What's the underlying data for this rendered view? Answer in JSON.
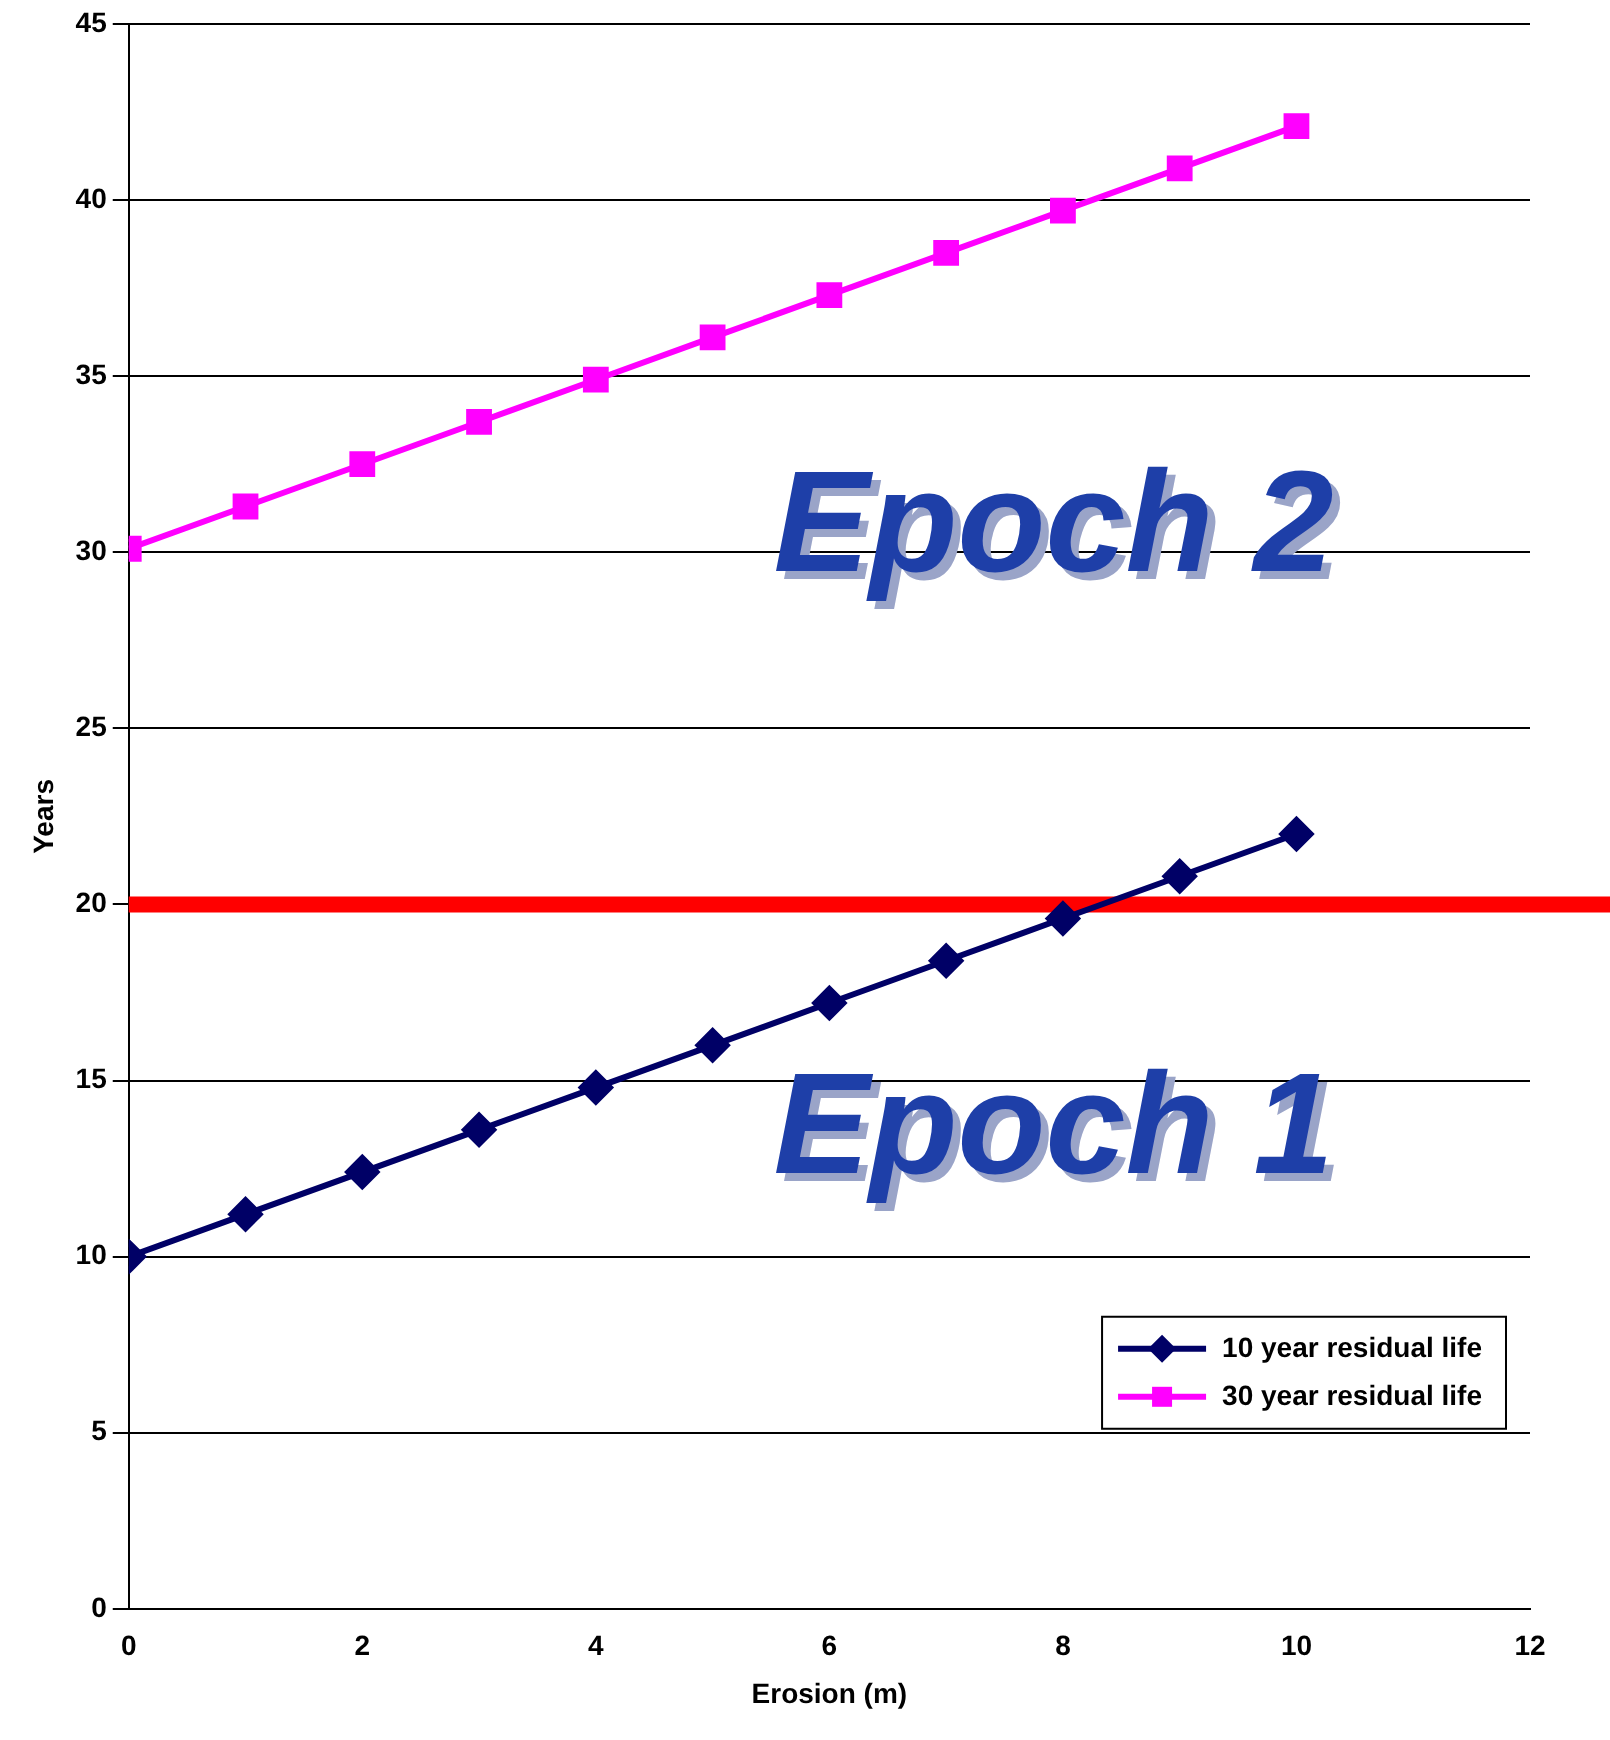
{
  "chart_data": {
    "type": "line",
    "xlabel": "Erosion (m)",
    "ylabel": "Years",
    "x": [
      0,
      1,
      2,
      3,
      4,
      5,
      6,
      7,
      8,
      9,
      10
    ],
    "series": [
      {
        "name": "10 year residual life",
        "color": "#000066",
        "marker": "diamond",
        "values": [
          10,
          11.2,
          12.4,
          13.6,
          14.8,
          16,
          17.2,
          18.4,
          19.6,
          20.8,
          22
        ]
      },
      {
        "name": "30 year residual life",
        "color": "#ff00ff",
        "marker": "square",
        "values": [
          30.1,
          31.3,
          32.5,
          33.7,
          34.9,
          36.1,
          37.3,
          38.5,
          39.7,
          40.9,
          42.1
        ]
      }
    ],
    "xlim": [
      0,
      12
    ],
    "xticks": [
      0,
      2,
      4,
      6,
      8,
      10,
      12
    ],
    "ylim": [
      0,
      45
    ],
    "yticks": [
      0,
      5,
      10,
      15,
      20,
      25,
      30,
      35,
      40,
      45
    ],
    "grid": "y",
    "legend": "bottom right",
    "line_style": "solid",
    "ref_lines": [
      {
        "axis": "y",
        "value": 20,
        "color": "#ff0000"
      }
    ],
    "annotations": [
      "Epoch 2",
      "Epoch 1"
    ]
  }
}
